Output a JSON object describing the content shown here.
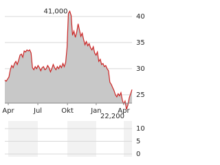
{
  "chart_data": [
    {
      "type": "area",
      "xlim": [
        0,
        92
      ],
      "ylim": [
        23.4,
        42.5
      ],
      "yticks": [
        25,
        30,
        35,
        40
      ],
      "grid": true,
      "xticks": [
        {
          "value": 2.5,
          "label": "Apr"
        },
        {
          "value": 23.9,
          "label": "Jul"
        },
        {
          "value": 45.3,
          "label": "Okt"
        },
        {
          "value": 66.1,
          "label": "Jan"
        },
        {
          "value": 86,
          "label": "Apr"
        }
      ],
      "color": "#cc2222",
      "fill": "#c8c8c8",
      "values": [
        27.8,
        27.6,
        28.0,
        28.4,
        29.8,
        30.6,
        30.2,
        31.0,
        31.4,
        30.8,
        31.6,
        32.6,
        32.8,
        32.2,
        33.4,
        33.2,
        33.6,
        33.4,
        33.6,
        33.0,
        30.2,
        29.8,
        30.4,
        30.0,
        30.6,
        30.2,
        29.6,
        30.2,
        30.4,
        29.8,
        30.0,
        30.6,
        30.2,
        29.4,
        30.0,
        30.8,
        30.2,
        29.8,
        30.4,
        30.0,
        30.6,
        30.2,
        31.0,
        30.4,
        31.2,
        34.0,
        40.6,
        41.0,
        40.2,
        36.4,
        37.2,
        36.0,
        37.0,
        38.6,
        37.4,
        36.2,
        36.8,
        35.6,
        34.6,
        35.2,
        34.4,
        34.8,
        34.0,
        33.6,
        34.2,
        33.0,
        32.6,
        33.2,
        31.4,
        31.8,
        30.8,
        31.0,
        30.4,
        30.6,
        30.0,
        29.6,
        27.4,
        27.0,
        26.4,
        25.8,
        25.0,
        24.6,
        25.2,
        24.8,
        25.4,
        24.0,
        23.2,
        23.8,
        22.2,
        23.0,
        24.4,
        25.2,
        26.0
      ],
      "value_labels": [
        null,
        null,
        null,
        null,
        null,
        null,
        null,
        null,
        null,
        null,
        null,
        null,
        null,
        null,
        null,
        null,
        null,
        null,
        null,
        null,
        null,
        null,
        null,
        null,
        null,
        null,
        null,
        null,
        null,
        null,
        null,
        null,
        null,
        null,
        null,
        null,
        null,
        null,
        null,
        null,
        null,
        null,
        null,
        null,
        null,
        null,
        null,
        "41,000",
        null,
        null,
        null,
        null,
        null,
        null,
        null,
        null,
        null,
        null,
        null,
        null,
        null,
        null,
        null,
        null,
        null,
        null,
        null,
        null,
        null,
        null,
        null,
        null,
        null,
        null,
        null,
        null,
        null,
        null,
        null,
        null,
        null,
        null,
        null,
        null,
        null,
        null,
        null,
        null,
        "22,200",
        null,
        null,
        null,
        null
      ]
    },
    {
      "type": "volume",
      "ylim": [
        0,
        13
      ],
      "yticks": [
        0,
        5,
        10
      ]
    }
  ]
}
